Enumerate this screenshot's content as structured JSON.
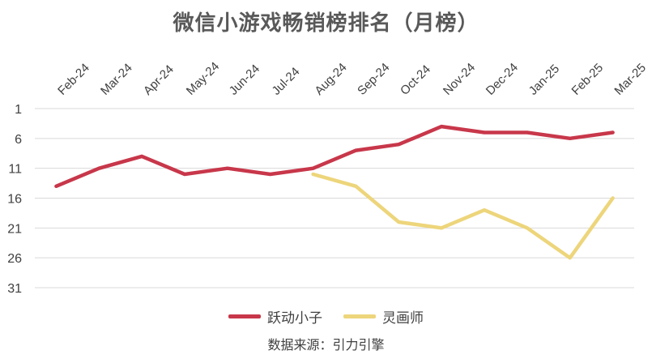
{
  "chart_data": {
    "type": "line",
    "title": "微信小游戏畅销榜排名（月榜）",
    "categories": [
      "Feb-24",
      "Mar-24",
      "Apr-24",
      "May-24",
      "Jun-24",
      "Jul-24",
      "Aug-24",
      "Sep-24",
      "Oct-24",
      "Nov-24",
      "Dec-24",
      "Jan-25",
      "Feb-25",
      "Mar-25"
    ],
    "y_ticks": [
      1,
      6,
      11,
      16,
      21,
      26,
      31
    ],
    "ylim": [
      1,
      31
    ],
    "y_reversed": true,
    "grid": "horizontal",
    "legend_position": "bottom",
    "series": [
      {
        "name": "跃动小子",
        "color": "#C8374A",
        "values": [
          14,
          11,
          9,
          12,
          11,
          12,
          11,
          8,
          7,
          4,
          5,
          5,
          6,
          5
        ]
      },
      {
        "name": "灵画师",
        "color": "#EDD57B",
        "values": [
          null,
          null,
          null,
          null,
          null,
          null,
          12,
          14,
          20,
          21,
          18,
          21,
          26,
          16
        ]
      }
    ]
  },
  "source_note": "数据来源：引力引擎"
}
